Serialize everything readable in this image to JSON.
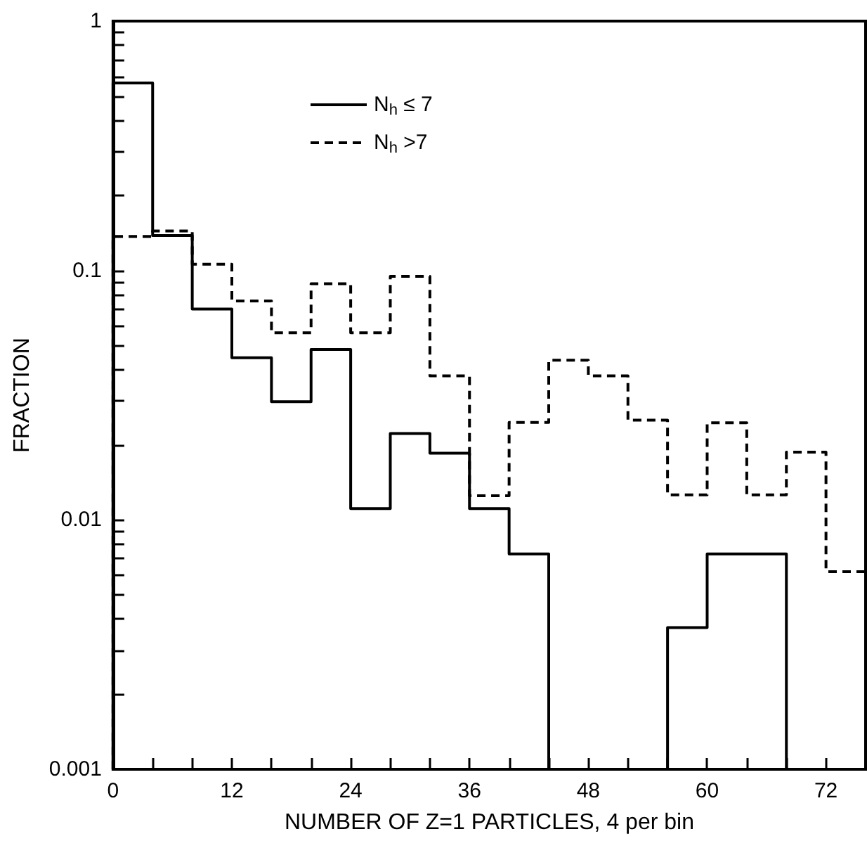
{
  "chart_data": {
    "type": "histogram",
    "xlabel": "NUMBER OF Z=1 PARTICLES, 4 per bin",
    "ylabel": "FRACTION",
    "log": "y",
    "legend": "top",
    "bins": [
      0,
      4,
      8,
      12,
      16,
      20,
      24,
      28,
      32,
      36,
      40,
      44,
      48,
      52,
      56,
      60,
      64,
      68,
      72,
      76
    ],
    "series": [
      {
        "name": "N$_{h}$ ≤ 7",
        "color": "#000000",
        "line_style": "solid",
        "bins": [
          0,
          4,
          8,
          12,
          16,
          20,
          24,
          28,
          32,
          36,
          40,
          44,
          48,
          52,
          56,
          60,
          64,
          68
        ],
        "values": [
          0.565,
          0.138,
          0.07,
          0.0447,
          0.0298,
          0.0482,
          0.0111,
          0.0222,
          0.0185,
          0.0111,
          0.0073,
          null,
          null,
          null,
          0.0037,
          0.0073,
          0.0073
        ]
      },
      {
        "name": "N$_{h}$ >7",
        "color": "#000000",
        "line_style": "dashed",
        "values": [
          0.137,
          0.144,
          0.106,
          0.0755,
          0.0563,
          0.0885,
          0.0563,
          0.0948,
          0.0378,
          0.0125,
          0.0246,
          0.0437,
          0.0378,
          0.0251,
          0.0126,
          0.0245,
          0.0126,
          0.0187,
          0.0062
        ]
      }
    ],
    "xlim": [
      0,
      76
    ],
    "xticks": [
      0,
      {
        "value": 4,
        "label": null
      },
      {
        "value": 8,
        "label": null
      },
      12,
      {
        "value": 16,
        "label": null
      },
      {
        "value": 20,
        "label": null
      },
      24,
      {
        "value": 28,
        "label": null
      },
      {
        "value": 32,
        "label": null
      },
      36,
      {
        "value": 40,
        "label": null
      },
      {
        "value": 44,
        "label": null
      },
      48,
      {
        "value": 52,
        "label": null
      },
      {
        "value": 56,
        "label": null
      },
      60,
      {
        "value": 64,
        "label": null
      },
      {
        "value": 68,
        "label": null
      },
      72
    ],
    "ylim": [
      0.001,
      1
    ],
    "yticks": [
      0.001,
      {
        "value": 0.002,
        "label": null
      },
      {
        "value": 0.003,
        "label": null
      },
      {
        "value": 0.004,
        "label": null
      },
      {
        "value": 0.005,
        "label": null
      },
      {
        "value": 0.006,
        "label": null
      },
      {
        "value": 0.007,
        "label": null
      },
      {
        "value": 0.008,
        "label": null
      },
      {
        "value": 0.009,
        "label": null
      },
      0.01,
      {
        "value": 0.02,
        "label": null
      },
      {
        "value": 0.03,
        "label": null
      },
      {
        "value": 0.04,
        "label": null
      },
      {
        "value": 0.05,
        "label": null
      },
      {
        "value": 0.06,
        "label": null
      },
      {
        "value": 0.07,
        "label": null
      },
      {
        "value": 0.08,
        "label": null
      },
      {
        "value": 0.09,
        "label": null
      },
      0.1,
      {
        "value": 0.2,
        "label": null
      },
      {
        "value": 0.3,
        "label": null
      },
      {
        "value": 0.4,
        "label": null
      },
      {
        "value": 0.5,
        "label": null
      },
      {
        "value": 0.6,
        "label": null
      },
      {
        "value": 0.7,
        "label": null
      },
      {
        "value": 0.8,
        "label": null
      },
      {
        "value": 0.9,
        "label": null
      },
      1
    ]
  }
}
